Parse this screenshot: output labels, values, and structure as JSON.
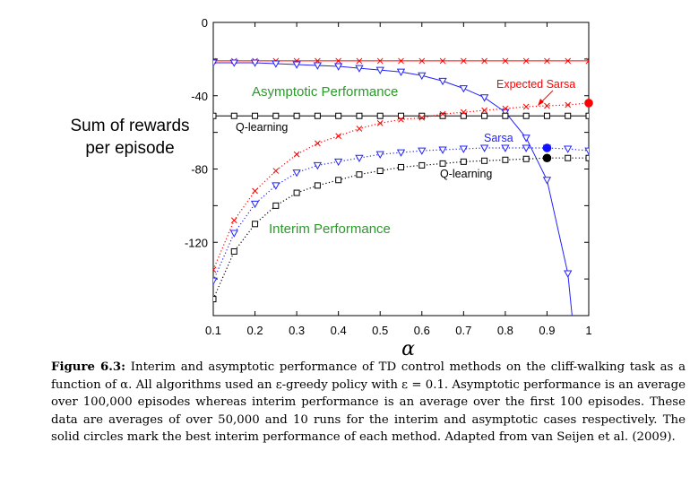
{
  "chart_data": {
    "type": "line",
    "title": "",
    "xlabel": "α",
    "ylabel": "Sum of rewards per episode",
    "xlim": [
      0.1,
      1
    ],
    "ylim": [
      -160,
      0
    ],
    "xticks": [
      "0.1",
      "0.2",
      "0.3",
      "0.4",
      "0.5",
      "0.6",
      "0.7",
      "0.8",
      "0.9",
      "1"
    ],
    "xtick_values": [
      0.1,
      0.2,
      0.3,
      0.4,
      0.5,
      0.6,
      0.7,
      0.8,
      0.9,
      1.0
    ],
    "yticks": [
      "0",
      "-40",
      "-80",
      "-120"
    ],
    "ytick_values": [
      0,
      -40,
      -80,
      -120
    ],
    "series": [
      {
        "name": "Expected Sarsa (asymptotic)",
        "group": "asymptotic",
        "color": "#ff0000",
        "marker": "x",
        "style": "solid",
        "x": [
          0.1,
          0.15,
          0.2,
          0.25,
          0.3,
          0.35,
          0.4,
          0.45,
          0.5,
          0.55,
          0.6,
          0.65,
          0.7,
          0.75,
          0.8,
          0.85,
          0.9,
          0.95,
          1.0
        ],
        "y": [
          -21,
          -21,
          -21,
          -21,
          -21,
          -21,
          -21,
          -21,
          -21,
          -21,
          -21,
          -21,
          -21,
          -21,
          -21,
          -21,
          -21,
          -21,
          -21
        ]
      },
      {
        "name": "Sarsa (asymptotic)",
        "group": "asymptotic",
        "color": "#2222ff",
        "marker": "triangle",
        "style": "solid",
        "x": [
          0.1,
          0.15,
          0.2,
          0.25,
          0.3,
          0.35,
          0.4,
          0.45,
          0.5,
          0.55,
          0.6,
          0.65,
          0.7,
          0.75,
          0.8,
          0.85,
          0.9,
          0.95,
          0.96
        ],
        "y": [
          -22,
          -22,
          -22,
          -22.5,
          -23,
          -23.5,
          -24,
          -25,
          -26,
          -27,
          -29,
          -32,
          -36,
          -41,
          -49,
          -63,
          -86,
          -137,
          -160
        ]
      },
      {
        "name": "Q-learning (asymptotic)",
        "group": "asymptotic",
        "color": "#000000",
        "marker": "square",
        "style": "solid",
        "x": [
          0.1,
          0.15,
          0.2,
          0.25,
          0.3,
          0.35,
          0.4,
          0.45,
          0.5,
          0.55,
          0.6,
          0.65,
          0.7,
          0.75,
          0.8,
          0.85,
          0.9,
          0.95,
          1.0
        ],
        "y": [
          -51,
          -51,
          -51,
          -51,
          -51,
          -51,
          -51,
          -51,
          -51,
          -51,
          -51,
          -51,
          -51,
          -51,
          -51,
          -51,
          -51,
          -51,
          -51
        ]
      },
      {
        "name": "Expected Sarsa (interim)",
        "group": "interim",
        "color": "#ff0000",
        "marker": "x",
        "style": "dotted",
        "x": [
          0.1,
          0.15,
          0.2,
          0.25,
          0.3,
          0.35,
          0.4,
          0.45,
          0.5,
          0.55,
          0.6,
          0.65,
          0.7,
          0.75,
          0.8,
          0.85,
          0.9,
          0.95,
          1.0
        ],
        "y": [
          -135,
          -108,
          -92,
          -81,
          -72,
          -66,
          -62,
          -58,
          -55,
          -53,
          -52,
          -50,
          -49,
          -48,
          -47,
          -46,
          -45.5,
          -45,
          -44
        ]
      },
      {
        "name": "Sarsa (interim)",
        "group": "interim",
        "color": "#2222ff",
        "marker": "triangle",
        "style": "dotted",
        "x": [
          0.1,
          0.15,
          0.2,
          0.25,
          0.3,
          0.35,
          0.4,
          0.45,
          0.5,
          0.55,
          0.6,
          0.65,
          0.7,
          0.75,
          0.8,
          0.85,
          0.9,
          0.95,
          1.0
        ],
        "y": [
          -141,
          -115,
          -99,
          -89,
          -82,
          -78,
          -76,
          -74,
          -72,
          -71,
          -70,
          -69.5,
          -69,
          -68.5,
          -68.5,
          -68.5,
          -68.5,
          -69,
          -70
        ]
      },
      {
        "name": "Q-learning (interim)",
        "group": "interim",
        "color": "#000000",
        "marker": "square",
        "style": "dotted",
        "x": [
          0.1,
          0.15,
          0.2,
          0.25,
          0.3,
          0.35,
          0.4,
          0.45,
          0.5,
          0.55,
          0.6,
          0.65,
          0.7,
          0.75,
          0.8,
          0.85,
          0.9,
          0.95,
          1.0
        ],
        "y": [
          -151,
          -125,
          -110,
          -100,
          -93,
          -89,
          -86,
          -83,
          -81,
          -79,
          -78,
          -77,
          -76,
          -75.5,
          -75,
          -74.5,
          -74,
          -74,
          -74
        ]
      }
    ],
    "best_points": [
      {
        "name": "Expected Sarsa best",
        "x": 1.0,
        "y": -44,
        "color": "#ff0000"
      },
      {
        "name": "Sarsa best",
        "x": 0.9,
        "y": -68.5,
        "color": "#1111ff"
      },
      {
        "name": "Q-learning best",
        "x": 0.9,
        "y": -74,
        "color": "#000000"
      }
    ],
    "annotations": {
      "asymptotic": {
        "text": "Asymptotic Performance",
        "color": "#2a9a2a"
      },
      "interim": {
        "text": "Interim Performance",
        "color": "#2a9a2a"
      },
      "expected_sarsa": {
        "text": "Expected Sarsa",
        "color": "#ff0000"
      },
      "sarsa": {
        "text": "Sarsa",
        "color": "#2222ff"
      },
      "qlearning_asym": {
        "text": "Q-learning",
        "color": "#000000"
      },
      "qlearning_interim": {
        "text": "Q-learning",
        "color": "#000000"
      }
    }
  },
  "ylabel_lines": [
    "Sum of rewards",
    "per episode"
  ],
  "caption": {
    "label": "Figure 6.3:",
    "text": " Interim and asymptotic performance of TD control methods on the cliff-walking task as a function of α. All algorithms used an ε-greedy policy with ε = 0.1. Asymptotic performance is an average over 100,000 episodes whereas interim performance is an average over the first 100 episodes. These data are averages of over 50,000 and 10 runs for the interim and asymptotic cases respectively. The solid circles mark the best interim performance of each method. Adapted from van Seijen et al. (2009)."
  }
}
